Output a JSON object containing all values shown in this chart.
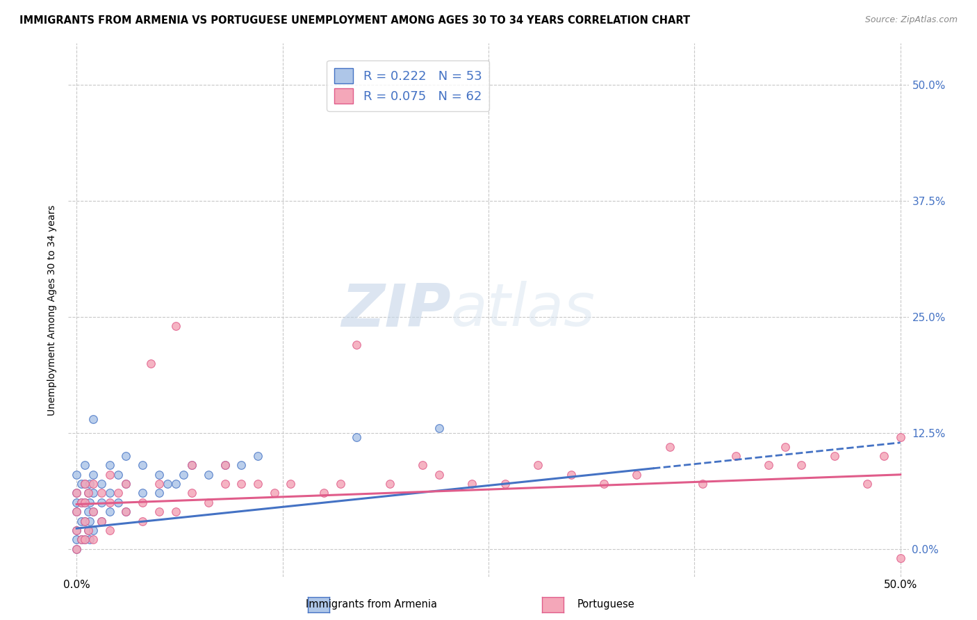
{
  "title": "IMMIGRANTS FROM ARMENIA VS PORTUGUESE UNEMPLOYMENT AMONG AGES 30 TO 34 YEARS CORRELATION CHART",
  "source": "Source: ZipAtlas.com",
  "ylabel": "Unemployment Among Ages 30 to 34 years",
  "xlim": [
    -0.005,
    0.505
  ],
  "ylim": [
    -0.03,
    0.545
  ],
  "xticks": [
    0.0,
    0.125,
    0.25,
    0.375,
    0.5
  ],
  "xtick_labels": [
    "0.0%",
    "",
    "",
    "",
    "50.0%"
  ],
  "ytick_labels_right": [
    "0.0%",
    "12.5%",
    "25.0%",
    "37.5%",
    "50.0%"
  ],
  "ytick_positions_right": [
    0.0,
    0.125,
    0.25,
    0.375,
    0.5
  ],
  "legend_labels": [
    "Immigrants from Armenia",
    "Portuguese"
  ],
  "R1": 0.222,
  "N1": 53,
  "R2": 0.075,
  "N2": 62,
  "color1": "#aec6e8",
  "color2": "#f4a7b9",
  "line1_color": "#4472c4",
  "line2_color": "#e05c8a",
  "background_color": "#ffffff",
  "grid_color": "#c8c8c8",
  "watermark_color": "#dce6f0",
  "title_fontsize": 10.5,
  "source_fontsize": 9,
  "scatter1_x": [
    0.0,
    0.0,
    0.0,
    0.0,
    0.0,
    0.0,
    0.0,
    0.003,
    0.003,
    0.003,
    0.003,
    0.005,
    0.005,
    0.005,
    0.005,
    0.005,
    0.007,
    0.007,
    0.007,
    0.008,
    0.008,
    0.008,
    0.008,
    0.01,
    0.01,
    0.01,
    0.01,
    0.01,
    0.015,
    0.015,
    0.015,
    0.02,
    0.02,
    0.02,
    0.025,
    0.025,
    0.03,
    0.03,
    0.03,
    0.04,
    0.04,
    0.05,
    0.05,
    0.055,
    0.06,
    0.065,
    0.07,
    0.08,
    0.09,
    0.1,
    0.11,
    0.17,
    0.22
  ],
  "scatter1_y": [
    0.0,
    0.01,
    0.02,
    0.04,
    0.05,
    0.06,
    0.08,
    0.01,
    0.03,
    0.05,
    0.07,
    0.01,
    0.03,
    0.05,
    0.07,
    0.09,
    0.02,
    0.04,
    0.06,
    0.01,
    0.03,
    0.05,
    0.07,
    0.02,
    0.04,
    0.06,
    0.08,
    0.14,
    0.03,
    0.05,
    0.07,
    0.04,
    0.06,
    0.09,
    0.05,
    0.08,
    0.04,
    0.07,
    0.1,
    0.06,
    0.09,
    0.06,
    0.08,
    0.07,
    0.07,
    0.08,
    0.09,
    0.08,
    0.09,
    0.09,
    0.1,
    0.12,
    0.13
  ],
  "scatter2_x": [
    0.0,
    0.0,
    0.0,
    0.0,
    0.003,
    0.003,
    0.005,
    0.005,
    0.005,
    0.005,
    0.007,
    0.007,
    0.01,
    0.01,
    0.01,
    0.015,
    0.015,
    0.02,
    0.02,
    0.02,
    0.025,
    0.03,
    0.03,
    0.04,
    0.04,
    0.045,
    0.05,
    0.05,
    0.06,
    0.06,
    0.07,
    0.07,
    0.08,
    0.09,
    0.09,
    0.1,
    0.11,
    0.12,
    0.13,
    0.15,
    0.16,
    0.17,
    0.19,
    0.21,
    0.22,
    0.24,
    0.26,
    0.28,
    0.3,
    0.32,
    0.34,
    0.36,
    0.38,
    0.4,
    0.42,
    0.43,
    0.44,
    0.46,
    0.48,
    0.49,
    0.5,
    0.5
  ],
  "scatter2_y": [
    0.0,
    0.02,
    0.04,
    0.06,
    0.01,
    0.05,
    0.01,
    0.03,
    0.05,
    0.07,
    0.02,
    0.06,
    0.01,
    0.04,
    0.07,
    0.03,
    0.06,
    0.02,
    0.05,
    0.08,
    0.06,
    0.04,
    0.07,
    0.03,
    0.05,
    0.2,
    0.04,
    0.07,
    0.04,
    0.24,
    0.06,
    0.09,
    0.05,
    0.07,
    0.09,
    0.07,
    0.07,
    0.06,
    0.07,
    0.06,
    0.07,
    0.22,
    0.07,
    0.09,
    0.08,
    0.07,
    0.07,
    0.09,
    0.08,
    0.07,
    0.08,
    0.11,
    0.07,
    0.1,
    0.09,
    0.11,
    0.09,
    0.1,
    0.07,
    0.1,
    0.12,
    -0.01
  ],
  "trendline1_x": [
    0.0,
    0.5
  ],
  "trendline1_y_start": 0.022,
  "trendline1_slope": 0.185,
  "trendline2_x": [
    0.0,
    0.5
  ],
  "trendline2_y_start": 0.048,
  "trendline2_slope": 0.064
}
